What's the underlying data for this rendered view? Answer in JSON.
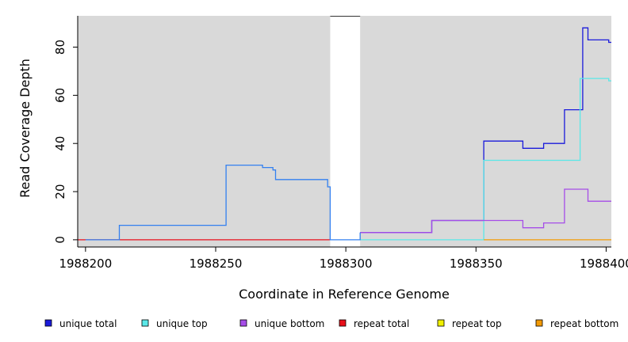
{
  "chart_data": {
    "type": "line",
    "title": "",
    "xlabel": "Coordinate in Reference Genome",
    "ylabel": "Read Coverage Depth",
    "xlim": [
      1988197,
      1988402
    ],
    "ylim": [
      -3,
      93
    ],
    "x_ticks": [
      1988200,
      1988250,
      1988300,
      1988350,
      1988400
    ],
    "x_tick_labels": [
      "1988200",
      "1988250",
      "1988300",
      "1988350",
      "1988400"
    ],
    "y_ticks": [
      0,
      20,
      40,
      60,
      80
    ],
    "y_tick_labels": [
      "0",
      "20",
      "40",
      "60",
      "80"
    ],
    "gap_region": [
      1988294,
      1988305.5
    ],
    "background_color": "#d9d9d9",
    "grid": false,
    "legend_position": "bottom",
    "series": [
      {
        "name": "unique total",
        "color": "#1a1adb",
        "points": [
          [
            1988305.5,
            3
          ],
          [
            1988333,
            3
          ],
          [
            1988333,
            8
          ],
          [
            1988353,
            8
          ],
          [
            1988353,
            41
          ],
          [
            1988368,
            41
          ],
          [
            1988368,
            38
          ],
          [
            1988376,
            38
          ],
          [
            1988376,
            40
          ],
          [
            1988384,
            40
          ],
          [
            1988384,
            54
          ],
          [
            1988391,
            54
          ],
          [
            1988391,
            88
          ],
          [
            1988393,
            88
          ],
          [
            1988393,
            83
          ],
          [
            1988401,
            83
          ],
          [
            1988401,
            82
          ],
          [
            1988402,
            82
          ]
        ]
      },
      {
        "name": "unique top",
        "color": "#5ae8e8",
        "points": [
          [
            1988305.5,
            0
          ],
          [
            1988353,
            0
          ],
          [
            1988353,
            33
          ],
          [
            1988390,
            33
          ],
          [
            1988390,
            67
          ],
          [
            1988401,
            67
          ],
          [
            1988401,
            66
          ],
          [
            1988402,
            66
          ]
        ]
      },
      {
        "name": "unique bottom",
        "color": "#a64de8",
        "points": [
          [
            1988305.5,
            3
          ],
          [
            1988333,
            3
          ],
          [
            1988333,
            8
          ],
          [
            1988368,
            8
          ],
          [
            1988368,
            5
          ],
          [
            1988376,
            5
          ],
          [
            1988376,
            7
          ],
          [
            1988384,
            7
          ],
          [
            1988384,
            21
          ],
          [
            1988393,
            21
          ],
          [
            1988393,
            16
          ],
          [
            1988402,
            16
          ]
        ]
      },
      {
        "name": "repeat total",
        "color": "#e8101a",
        "points": [
          [
            1988197,
            0
          ],
          [
            1988294,
            0
          ]
        ]
      },
      {
        "name": "repeat top",
        "color": "#f0f000",
        "points": []
      },
      {
        "name": "repeat bottom",
        "color": "#f29a05",
        "points": [
          [
            1988353,
            0
          ],
          [
            1988402,
            0
          ]
        ]
      },
      {
        "color": "#3380f0",
        "points": [
          [
            1988200,
            0
          ],
          [
            1988213,
            0
          ],
          [
            1988213,
            6
          ],
          [
            1988254,
            6
          ],
          [
            1988254,
            31
          ],
          [
            1988268,
            31
          ],
          [
            1988268,
            30
          ],
          [
            1988272,
            30
          ],
          [
            1988272,
            29
          ],
          [
            1988273,
            29
          ],
          [
            1988273,
            25
          ],
          [
            1988293,
            25
          ],
          [
            1988293,
            22
          ],
          [
            1988294,
            22
          ],
          [
            1988294,
            0
          ],
          [
            1988305.5,
            0
          ],
          [
            1988305.5,
            3
          ]
        ]
      }
    ]
  }
}
